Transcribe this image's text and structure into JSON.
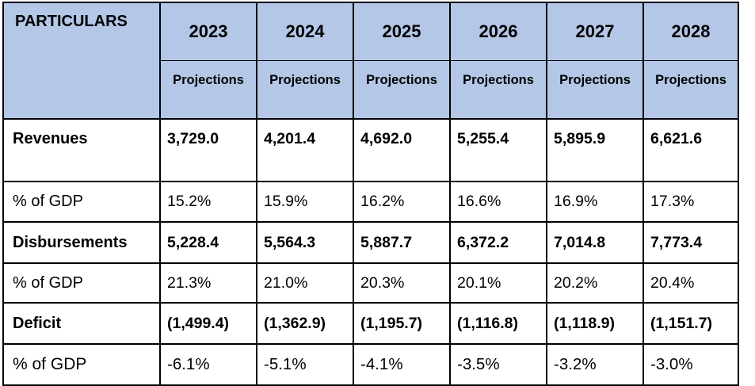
{
  "table": {
    "corner_label": "PARTICULARS",
    "years": [
      "2023",
      "2024",
      "2025",
      "2026",
      "2027",
      "2028"
    ],
    "subheaders": [
      "Projections",
      "Projections",
      "Projections",
      "Projections",
      "Projections",
      "Projections"
    ],
    "rows": [
      {
        "label": "Revenues",
        "bold": true,
        "values": [
          "3,729.0",
          "4,201.4",
          "4,692.0",
          "5,255.4",
          "5,895.9",
          "6,621.6"
        ]
      },
      {
        "label": "% of GDP",
        "bold": false,
        "values": [
          "15.2%",
          "15.9%",
          "16.2%",
          "16.6%",
          "16.9%",
          "17.3%"
        ]
      },
      {
        "label": "Disbursements",
        "bold": true,
        "values": [
          "5,228.4",
          "5,564.3",
          "5,887.7",
          "6,372.2",
          "7,014.8",
          "7,773.4"
        ]
      },
      {
        "label": "% of GDP",
        "bold": false,
        "values": [
          "21.3%",
          "21.0%",
          "20.3%",
          "20.1%",
          "20.2%",
          "20.4%"
        ]
      },
      {
        "label": "Deficit",
        "bold": true,
        "values": [
          "(1,499.4)",
          "(1,362.9)",
          "(1,195.7)",
          "(1,116.8)",
          "(1,118.9)",
          "(1,151.7)"
        ]
      },
      {
        "label": "% of GDP",
        "bold": false,
        "values": [
          "-6.1%",
          "-5.1%",
          "-4.1%",
          "-3.5%",
          "-3.2%",
          "-3.0%"
        ]
      }
    ],
    "colors": {
      "header_bg": "#b4c7e7",
      "border": "#000000"
    }
  }
}
